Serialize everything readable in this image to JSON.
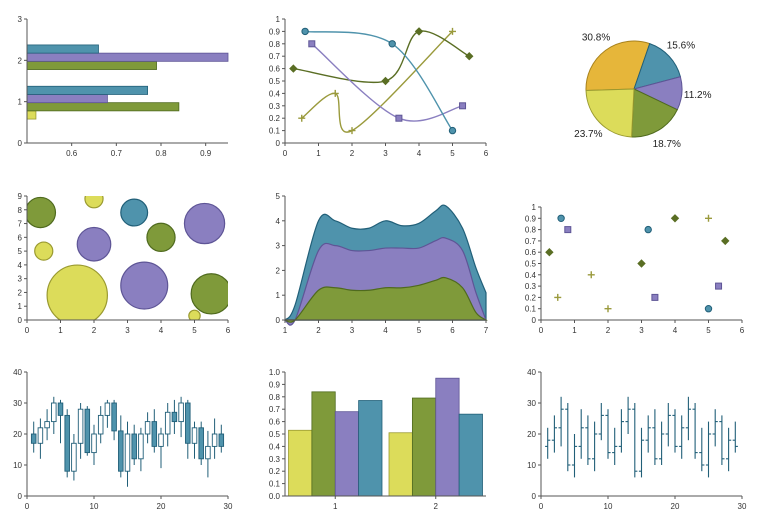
{
  "colors": {
    "yellow": "#dcdc5a",
    "yellow_dark": "#9a9a30",
    "green": "#7f9a3a",
    "green_dark": "#4f6a1e",
    "purple": "#8a7fc0",
    "purple_dark": "#5e5596",
    "teal": "#4f93ac",
    "teal_dark": "#215f78",
    "olive": "#9a9a3c",
    "darkgreen": "#5a6e24",
    "orange": "#e6b63a",
    "orange_dark": "#a8821c",
    "axis": "#555555"
  },
  "chart_data": [
    {
      "type": "bar",
      "orientation": "horizontal",
      "title": "",
      "categories": [
        "1",
        "2"
      ],
      "xlim": [
        0.5,
        0.95
      ],
      "ylim": [
        0,
        3
      ],
      "xticks": [
        "0.6",
        "0.7",
        "0.8",
        "0.9"
      ],
      "yticks": [
        "0",
        "1",
        "2",
        "3"
      ],
      "series": [
        {
          "name": "s1",
          "color": "yellow",
          "values": [
            0.52,
            0.48
          ]
        },
        {
          "name": "s2",
          "color": "green",
          "values": [
            0.84,
            0.79
          ]
        },
        {
          "name": "s3",
          "color": "purple",
          "values": [
            0.68,
            0.95
          ]
        },
        {
          "name": "s4",
          "color": "teal",
          "values": [
            0.77,
            0.66
          ]
        }
      ]
    },
    {
      "type": "line",
      "title": "",
      "xlim": [
        0,
        6
      ],
      "ylim": [
        0,
        1
      ],
      "xticks": [
        "0",
        "1",
        "2",
        "3",
        "4",
        "5",
        "6"
      ],
      "yticks": [
        "0",
        "0.1",
        "0.2",
        "0.3",
        "0.4",
        "0.5",
        "0.6",
        "0.7",
        "0.8",
        "0.9",
        "1"
      ],
      "series": [
        {
          "name": "s1",
          "color": "olive",
          "marker": "plus",
          "x": [
            0.5,
            1.5,
            2.0,
            5.0
          ],
          "y": [
            0.2,
            0.4,
            0.1,
            0.9
          ]
        },
        {
          "name": "s2",
          "color": "darkgreen",
          "marker": "diamond",
          "x": [
            0.25,
            3.0,
            4.0,
            5.5
          ],
          "y": [
            0.6,
            0.5,
            0.9,
            0.7
          ]
        },
        {
          "name": "s3",
          "color": "purple",
          "marker": "square",
          "x": [
            0.8,
            3.4,
            5.3
          ],
          "y": [
            0.8,
            0.2,
            0.3
          ]
        },
        {
          "name": "s4",
          "color": "teal",
          "marker": "circle",
          "x": [
            0.6,
            3.2,
            5.0
          ],
          "y": [
            0.9,
            0.8,
            0.1
          ]
        }
      ]
    },
    {
      "type": "pie",
      "title": "",
      "labels": [
        "30.8%",
        "15.6%",
        "11.2%",
        "18.7%",
        "23.7%"
      ],
      "values": [
        30.8,
        15.6,
        11.2,
        18.7,
        23.7
      ],
      "slice_colors": [
        "orange",
        "teal",
        "purple",
        "green",
        "yellow"
      ]
    },
    {
      "type": "scatter",
      "subtype": "bubble",
      "title": "",
      "xlim": [
        0,
        6
      ],
      "ylim": [
        0,
        9
      ],
      "xticks": [
        "0",
        "1",
        "2",
        "3",
        "4",
        "5",
        "6"
      ],
      "yticks": [
        "0",
        "1",
        "2",
        "3",
        "4",
        "5",
        "6",
        "7",
        "8",
        "9"
      ],
      "series": [
        {
          "name": "s1",
          "color": "yellow",
          "points": [
            {
              "x": 0.5,
              "y": 5,
              "size": 0.27
            },
            {
              "x": 2.0,
              "y": 8.8,
              "size": 0.27
            },
            {
              "x": 1.5,
              "y": 1.8,
              "size": 0.9
            },
            {
              "x": 5.0,
              "y": 0.3,
              "size": 0.17
            }
          ]
        },
        {
          "name": "s2",
          "color": "green",
          "points": [
            {
              "x": 0.4,
              "y": 7.8,
              "size": 0.45
            },
            {
              "x": 4.0,
              "y": 6.0,
              "size": 0.42
            },
            {
              "x": 5.5,
              "y": 1.9,
              "size": 0.6
            }
          ]
        },
        {
          "name": "s3",
          "color": "purple",
          "points": [
            {
              "x": 2.0,
              "y": 5.5,
              "size": 0.5
            },
            {
              "x": 5.3,
              "y": 7.0,
              "size": 0.6
            },
            {
              "x": 3.5,
              "y": 2.5,
              "size": 0.7
            }
          ]
        },
        {
          "name": "s4",
          "color": "teal",
          "points": [
            {
              "x": 3.2,
              "y": 7.8,
              "size": 0.4
            }
          ]
        }
      ]
    },
    {
      "type": "area",
      "stacked": true,
      "title": "",
      "xlim": [
        1,
        7
      ],
      "ylim": [
        0,
        5
      ],
      "xticks": [
        "1",
        "2",
        "3",
        "4",
        "5",
        "6",
        "7"
      ],
      "yticks": [
        "0",
        "1",
        "2",
        "3",
        "4",
        "5"
      ],
      "x": [
        1.0,
        1.3,
        2.0,
        2.5,
        3.0,
        3.5,
        4.0,
        4.5,
        5.0,
        5.5,
        5.8,
        6.3,
        6.7,
        7.0
      ],
      "series": [
        {
          "name": "s1",
          "color": "green",
          "values": [
            0.0,
            0.0,
            1.2,
            1.3,
            1.2,
            1.2,
            1.3,
            1.3,
            1.4,
            1.6,
            1.7,
            1.3,
            0.3,
            0.0
          ]
        },
        {
          "name": "s2",
          "color": "purple",
          "values": [
            0.0,
            0.0,
            1.6,
            1.7,
            1.6,
            1.6,
            1.6,
            1.6,
            1.5,
            1.6,
            1.6,
            1.5,
            0.8,
            0.0
          ]
        },
        {
          "name": "s3",
          "color": "teal",
          "values": [
            0.0,
            0.6,
            1.2,
            1.0,
            0.9,
            0.9,
            1.1,
            0.9,
            1.0,
            1.2,
            1.3,
            0.9,
            1.0,
            1.1
          ]
        }
      ]
    },
    {
      "type": "scatter",
      "title": "",
      "xlim": [
        0,
        6
      ],
      "ylim": [
        0,
        1
      ],
      "xticks": [
        "0",
        "1",
        "2",
        "3",
        "4",
        "5",
        "6"
      ],
      "yticks": [
        "0",
        "0.1",
        "0.2",
        "0.3",
        "0.4",
        "0.5",
        "0.6",
        "0.7",
        "0.8",
        "0.9",
        "1"
      ],
      "series": [
        {
          "name": "s1",
          "color": "olive",
          "marker": "plus",
          "x": [
            0.5,
            1.5,
            2.0,
            5.0
          ],
          "y": [
            0.2,
            0.4,
            0.1,
            0.9
          ]
        },
        {
          "name": "s2",
          "color": "darkgreen",
          "marker": "diamond",
          "x": [
            0.25,
            3.0,
            4.0,
            5.5
          ],
          "y": [
            0.6,
            0.5,
            0.9,
            0.7
          ]
        },
        {
          "name": "s3",
          "color": "purple",
          "marker": "square",
          "x": [
            0.8,
            3.4,
            5.3
          ],
          "y": [
            0.8,
            0.2,
            0.3
          ]
        },
        {
          "name": "s4",
          "color": "teal",
          "marker": "circle",
          "x": [
            0.6,
            3.2,
            5.0
          ],
          "y": [
            0.9,
            0.8,
            0.1
          ]
        }
      ]
    },
    {
      "type": "candlestick",
      "title": "",
      "xlim": [
        0,
        30
      ],
      "ylim": [
        0,
        40
      ],
      "xticks": [
        "0",
        "10",
        "20",
        "30"
      ],
      "yticks": [
        "0",
        "10",
        "20",
        "30",
        "40"
      ],
      "ohlc": [
        [
          1,
          20,
          24,
          14,
          17
        ],
        [
          2,
          17,
          25,
          12,
          22
        ],
        [
          3,
          22,
          28,
          18,
          24
        ],
        [
          4,
          24,
          32,
          20,
          30
        ],
        [
          5,
          30,
          31,
          17,
          26
        ],
        [
          6,
          26,
          28,
          6,
          8
        ],
        [
          7,
          8,
          20,
          5,
          17
        ],
        [
          8,
          17,
          30,
          12,
          28
        ],
        [
          9,
          28,
          29,
          13,
          14
        ],
        [
          10,
          14,
          23,
          10,
          20
        ],
        [
          11,
          20,
          29,
          17,
          26
        ],
        [
          12,
          26,
          31,
          22,
          30
        ],
        [
          13,
          30,
          31,
          18,
          21
        ],
        [
          14,
          21,
          26,
          6,
          8
        ],
        [
          15,
          8,
          24,
          3,
          20
        ],
        [
          16,
          20,
          23,
          10,
          12
        ],
        [
          17,
          12,
          22,
          8,
          20
        ],
        [
          18,
          20,
          27,
          17,
          24
        ],
        [
          19,
          24,
          28,
          14,
          16
        ],
        [
          20,
          16,
          22,
          9,
          20
        ],
        [
          21,
          20,
          30,
          16,
          27
        ],
        [
          22,
          27,
          31,
          20,
          24
        ],
        [
          23,
          24,
          32,
          19,
          30
        ],
        [
          24,
          30,
          31,
          12,
          17
        ],
        [
          25,
          17,
          24,
          12,
          22
        ],
        [
          26,
          22,
          24,
          10,
          12
        ],
        [
          27,
          12,
          21,
          6,
          16
        ],
        [
          28,
          16,
          25,
          12,
          20
        ],
        [
          29,
          20,
          23,
          14,
          16
        ]
      ]
    },
    {
      "type": "bar",
      "orientation": "vertical",
      "title": "",
      "categories": [
        "1",
        "2"
      ],
      "ylim": [
        0,
        1
      ],
      "yticks": [
        "0.0",
        "0.1",
        "0.2",
        "0.3",
        "0.4",
        "0.5",
        "0.6",
        "0.7",
        "0.8",
        "0.9",
        "1.0"
      ],
      "series": [
        {
          "name": "s1",
          "color": "yellow",
          "values": [
            0.53,
            0.51
          ]
        },
        {
          "name": "s2",
          "color": "green",
          "values": [
            0.84,
            0.79
          ]
        },
        {
          "name": "s3",
          "color": "purple",
          "values": [
            0.68,
            0.95
          ]
        },
        {
          "name": "s4",
          "color": "teal",
          "values": [
            0.77,
            0.66
          ]
        }
      ]
    },
    {
      "type": "ohlc",
      "title": "",
      "xlim": [
        0,
        30
      ],
      "ylim": [
        0,
        40
      ],
      "xticks": [
        "0",
        "10",
        "20",
        "30"
      ],
      "yticks": [
        "0",
        "10",
        "20",
        "30",
        "40"
      ],
      "ohlc": [
        [
          1,
          16,
          22,
          12,
          18
        ],
        [
          2,
          18,
          26,
          14,
          22
        ],
        [
          3,
          22,
          32,
          16,
          28
        ],
        [
          4,
          28,
          30,
          8,
          10
        ],
        [
          5,
          10,
          20,
          6,
          16
        ],
        [
          6,
          16,
          28,
          12,
          22
        ],
        [
          7,
          22,
          26,
          10,
          12
        ],
        [
          8,
          12,
          24,
          8,
          20
        ],
        [
          9,
          20,
          30,
          18,
          26
        ],
        [
          10,
          26,
          28,
          12,
          14
        ],
        [
          11,
          14,
          22,
          10,
          16
        ],
        [
          12,
          16,
          28,
          14,
          24
        ],
        [
          13,
          24,
          32,
          20,
          28
        ],
        [
          14,
          28,
          30,
          6,
          8
        ],
        [
          15,
          8,
          22,
          6,
          18
        ],
        [
          16,
          18,
          26,
          14,
          22
        ],
        [
          17,
          22,
          28,
          10,
          12
        ],
        [
          18,
          12,
          24,
          10,
          20
        ],
        [
          19,
          20,
          30,
          16,
          26
        ],
        [
          20,
          26,
          28,
          14,
          16
        ],
        [
          21,
          16,
          26,
          12,
          22
        ],
        [
          22,
          22,
          32,
          18,
          28
        ],
        [
          23,
          28,
          30,
          12,
          14
        ],
        [
          24,
          14,
          22,
          8,
          10
        ],
        [
          25,
          10,
          24,
          6,
          20
        ],
        [
          26,
          20,
          28,
          16,
          24
        ],
        [
          27,
          24,
          26,
          10,
          12
        ],
        [
          28,
          12,
          22,
          8,
          18
        ],
        [
          29,
          18,
          24,
          14,
          16
        ]
      ]
    }
  ]
}
